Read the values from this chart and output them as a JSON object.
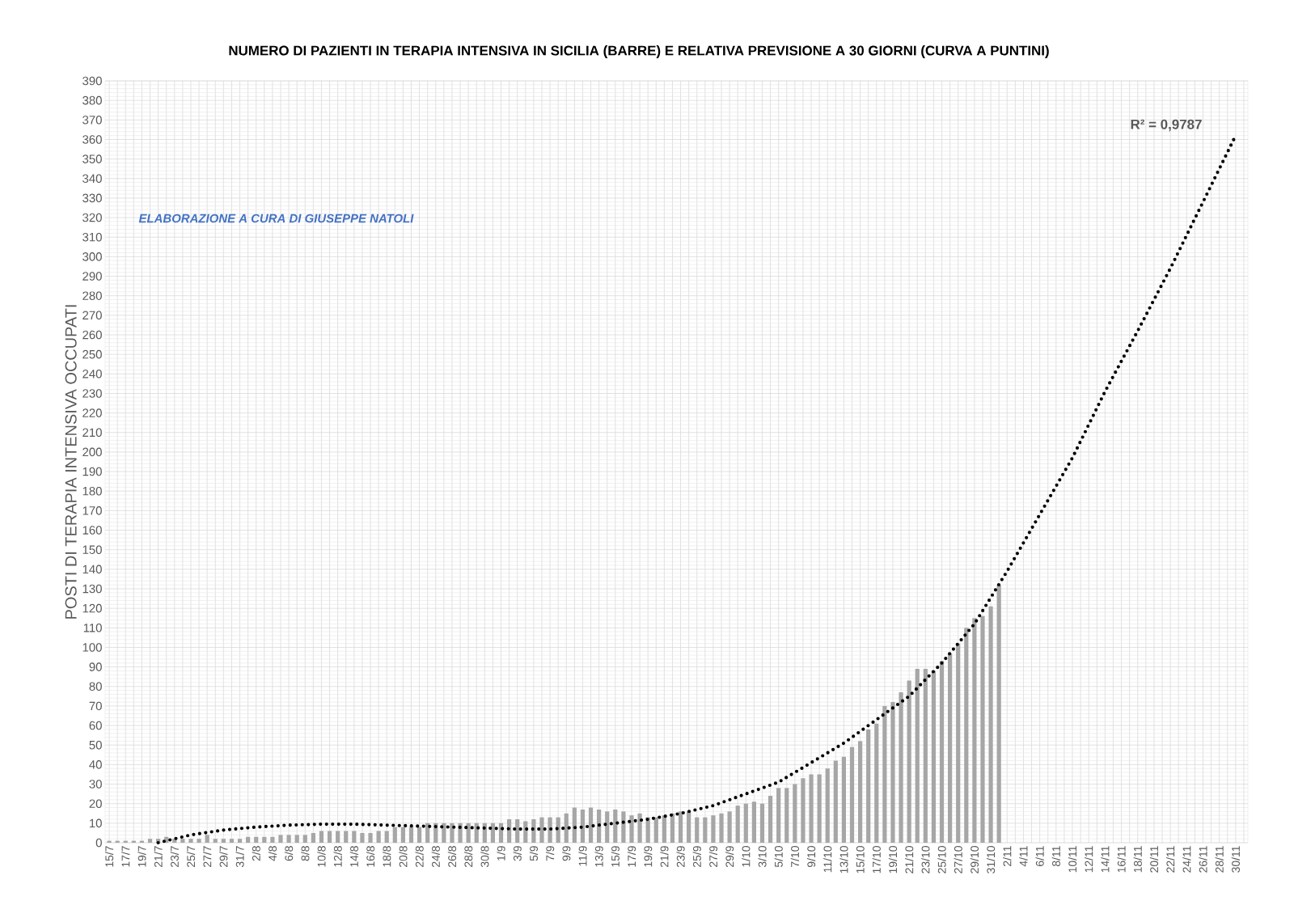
{
  "chart_data": {
    "type": "bar",
    "title": "NUMERO DI PAZIENTI IN TERAPIA INTENSIVA IN SICILIA (BARRE) E RELATIVA PREVISIONE A 30 GIORNI (CURVA A PUNTINI)",
    "ylabel": "POSTI DI TERAPIA INTENSIVA OCCUPATI",
    "annotations": [
      "R² = 0,9787",
      "ELABORAZIONE A CURA DI GIUSEPPE NATOLI"
    ],
    "categories": [
      "15/7",
      null,
      "17/7",
      null,
      "19/7",
      null,
      "21/7",
      null,
      "23/7",
      null,
      "25/7",
      null,
      "27/7",
      null,
      "29/7",
      null,
      "31/7",
      null,
      "2/8",
      null,
      "4/8",
      null,
      "6/8",
      null,
      "8/8",
      null,
      "10/8",
      null,
      "12/8",
      null,
      "14/8",
      null,
      "16/8",
      null,
      "18/8",
      null,
      "20/8",
      null,
      "22/8",
      null,
      "24/8",
      null,
      "26/8",
      null,
      "28/8",
      null,
      "30/8",
      null,
      "1/9",
      null,
      "3/9",
      null,
      "5/9",
      null,
      "7/9",
      null,
      "9/9",
      null,
      "11/9",
      null,
      "13/9",
      null,
      "15/9",
      null,
      "17/9",
      null,
      "19/9",
      null,
      "21/9",
      null,
      "23/9",
      null,
      "25/9",
      null,
      "27/9",
      null,
      "29/9",
      null,
      "1/10",
      null,
      "3/10",
      null,
      "5/10",
      null,
      "7/10",
      null,
      "9/10",
      null,
      "11/10",
      null,
      "13/10",
      null,
      "15/10",
      null,
      "17/10",
      null,
      "19/10",
      null,
      "21/10",
      null,
      "23/10",
      null,
      "25/10",
      null,
      "27/10",
      null,
      "29/10",
      null,
      "31/10",
      null,
      "2/11",
      null,
      "4/11",
      null,
      "6/11",
      null,
      "8/11",
      null,
      "10/11",
      null,
      "12/11",
      null,
      "14/11",
      null,
      "16/11",
      null,
      "18/11",
      null,
      "20/11",
      null,
      "22/11",
      null,
      "24/11",
      null,
      "26/11",
      null,
      "28/11",
      null,
      "30/11",
      null
    ],
    "series": [
      {
        "color": "#a6a6a6",
        "values": [
          1,
          1,
          1,
          1,
          1,
          2,
          2,
          3,
          2,
          2,
          2,
          2,
          4,
          2,
          2,
          2,
          2,
          3,
          3,
          3,
          3,
          4,
          4,
          4,
          4,
          5,
          6,
          6,
          6,
          6,
          6,
          5,
          5,
          6,
          6,
          8,
          8,
          8,
          8,
          10,
          10,
          10,
          10,
          10,
          10,
          10,
          10,
          10,
          10,
          12,
          12,
          11,
          12,
          13,
          13,
          13,
          15,
          18,
          17,
          18,
          17,
          16,
          17,
          16,
          14,
          15,
          13,
          13,
          14,
          15,
          16,
          16,
          13,
          13,
          14,
          15,
          16,
          19,
          20,
          21,
          20,
          24,
          28,
          28,
          30,
          33,
          35,
          35,
          38,
          42,
          44,
          49,
          52,
          58,
          61,
          70,
          72,
          77,
          83,
          89,
          89,
          88,
          93,
          97,
          102,
          110,
          115,
          116,
          121,
          132,
          null,
          null,
          null,
          null,
          null,
          null,
          null,
          null,
          null,
          null,
          null,
          null,
          null,
          null,
          null,
          null,
          null,
          null,
          null,
          null,
          null,
          null,
          null,
          null,
          null,
          null,
          null,
          null,
          null,
          null
        ]
      },
      {
        "type": "line",
        "color": "#000000",
        "line_style": "dotted",
        "marker": "none",
        "x": [
          "21/7",
          "25/7",
          "29/7",
          "2/8",
          "6/8",
          "10/8",
          "14/8",
          "18/8",
          "22/8",
          "26/8",
          "30/8",
          "3/9",
          "7/9",
          "11/9",
          "15/9",
          "19/9",
          "23/9",
          "27/9",
          "1/10",
          "5/10",
          "9/10",
          "13/10",
          "17/10",
          "21/10",
          "25/10",
          "29/10",
          "2/11",
          "6/11",
          "10/11",
          "14/11",
          "18/11",
          "22/11",
          "26/11",
          "30/11"
        ],
        "values": [
          0,
          4,
          6.5,
          8,
          9,
          9.5,
          9.5,
          9,
          8.5,
          8,
          7.5,
          7,
          7,
          8,
          10,
          12,
          15,
          19,
          25,
          31,
          41,
          51,
          63,
          75,
          92,
          112,
          139,
          168,
          197,
          231,
          262,
          294,
          328,
          362
        ]
      }
    ],
    "ylim": [
      0,
      390
    ],
    "yticks": [
      0,
      10,
      20,
      30,
      40,
      50,
      60,
      70,
      80,
      90,
      100,
      110,
      120,
      130,
      140,
      150,
      160,
      170,
      180,
      190,
      200,
      210,
      220,
      230,
      240,
      250,
      260,
      270,
      280,
      290,
      300,
      310,
      320,
      330,
      340,
      350,
      360,
      370,
      380,
      390
    ],
    "grid": true
  }
}
